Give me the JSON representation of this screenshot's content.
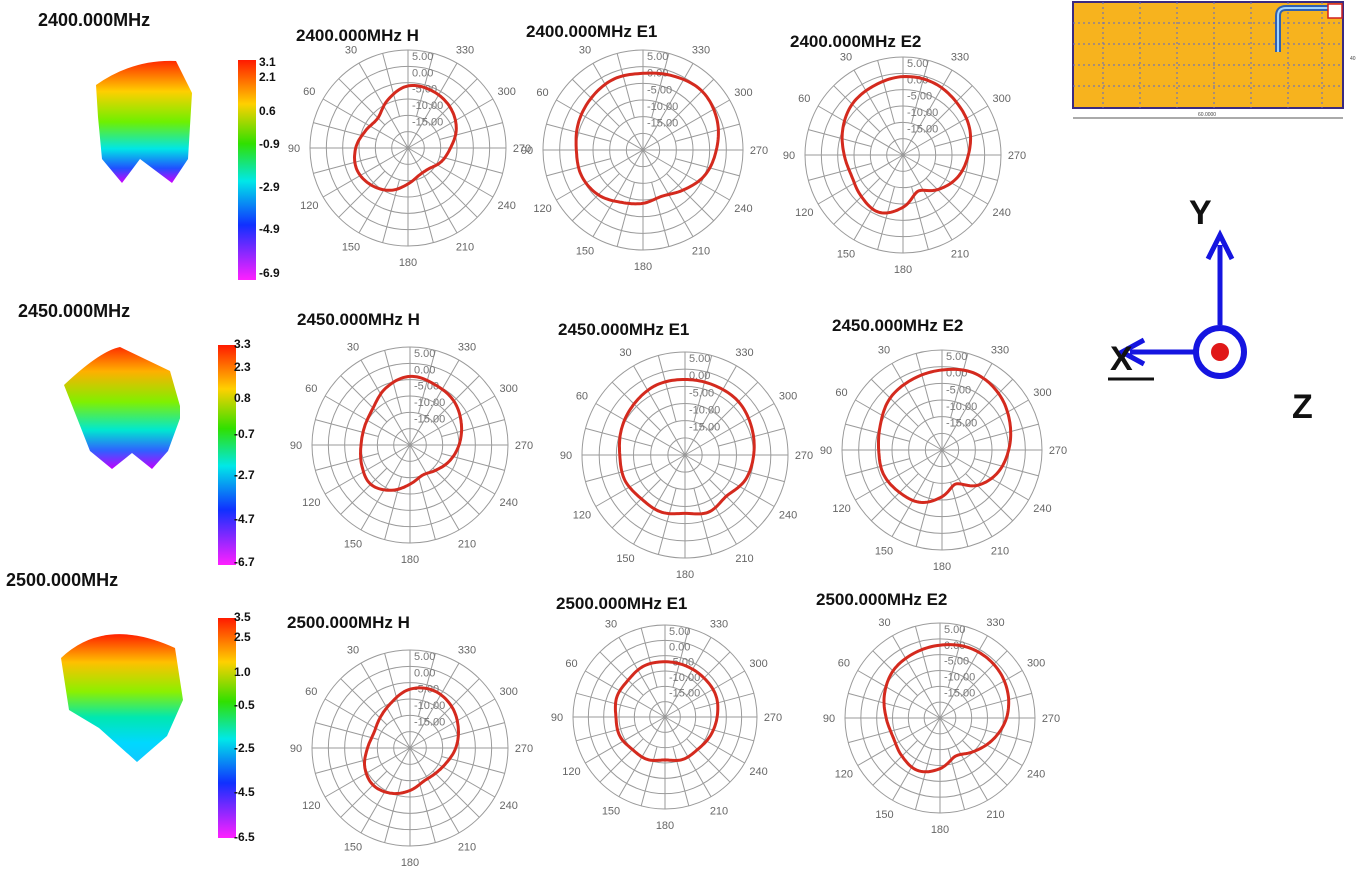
{
  "rows": [
    {
      "freq_label": "2400.000MHz",
      "colorbar": {
        "ticks": [
          "3.1",
          "2.1",
          "0.6",
          "-0.9",
          "-2.9",
          "-4.9",
          "-6.9"
        ]
      },
      "plots": [
        {
          "title": "2400.000MHz  H",
          "r_min": [
            6,
            9,
            12,
            11,
            9,
            8,
            9,
            11,
            14,
            16,
            16,
            14,
            12,
            9,
            7,
            6
          ]
        },
        {
          "title": "2400.000MHz  E1",
          "r_min": [
            2,
            2,
            3,
            4,
            5,
            5,
            6,
            8,
            9,
            10,
            8,
            5,
            3,
            1,
            0,
            1
          ]
        },
        {
          "title": "2400.000MHz  E2",
          "r_min": [
            1,
            2,
            3,
            5,
            7,
            8,
            7,
            6,
            9,
            13,
            10,
            7,
            5,
            3,
            2,
            1
          ]
        }
      ]
    },
    {
      "freq_label": "2450.000MHz",
      "colorbar": {
        "ticks": [
          "3.3",
          "2.3",
          "0.8",
          "-0.7",
          "-2.7",
          "-4.7",
          "-6.7"
        ]
      },
      "plots": [
        {
          "title": "2450.000MHz  H",
          "r_min": [
            4,
            6,
            9,
            10,
            10,
            9,
            8,
            10,
            13,
            15,
            14,
            12,
            10,
            8,
            6,
            5
          ]
        },
        {
          "title": "2450.000MHz  E1",
          "r_min": [
            3,
            3,
            4,
            5,
            6,
            6,
            7,
            7,
            8,
            7,
            8,
            6,
            5,
            4,
            3,
            3
          ]
        },
        {
          "title": "2450.000MHz  E2",
          "r_min": [
            1,
            2,
            3,
            5,
            6,
            6,
            7,
            8,
            11,
            14,
            10,
            7,
            5,
            3,
            1,
            0
          ]
        }
      ]
    },
    {
      "freq_label": "2500.000MHz",
      "colorbar": {
        "ticks": [
          "3.5",
          "2.5",
          "1.0",
          "-0.5",
          "-2.5",
          "-4.5",
          "-6.5"
        ]
      },
      "plots": [
        {
          "title": "2500.000MHz  H",
          "r_min": [
            7,
            10,
            12,
            13,
            12,
            10,
            9,
            10,
            12,
            14,
            14,
            13,
            11,
            9,
            7,
            6
          ]
        },
        {
          "title": "2500.000MHz  E1",
          "r_min": [
            7,
            7,
            8,
            8,
            9,
            9,
            10,
            10,
            11,
            10,
            10,
            9,
            8,
            7,
            7,
            7
          ]
        },
        {
          "title": "2500.000MHz  E2",
          "r_min": [
            2,
            3,
            4,
            6,
            8,
            9,
            8,
            7,
            9,
            12,
            10,
            7,
            4,
            2,
            1,
            1
          ]
        }
      ]
    }
  ],
  "chart_data": [
    {
      "type": "line",
      "title": "2400.000MHz  H",
      "theta_deg": [
        0,
        22.5,
        45,
        67.5,
        90,
        112.5,
        135,
        157.5,
        180,
        202.5,
        225,
        247.5,
        270,
        292.5,
        315,
        337.5
      ],
      "r_min": [
        6,
        9,
        12,
        11,
        9,
        8,
        9,
        11,
        14,
        16,
        16,
        14,
        12,
        9,
        7,
        6
      ]
    },
    {
      "type": "line",
      "title": "2400.000MHz  E1",
      "theta_deg": [
        0,
        22.5,
        45,
        67.5,
        90,
        112.5,
        135,
        157.5,
        180,
        202.5,
        225,
        247.5,
        270,
        292.5,
        315,
        337.5
      ],
      "r_min": [
        2,
        2,
        3,
        4,
        5,
        5,
        6,
        8,
        9,
        10,
        8,
        5,
        3,
        1,
        0,
        1
      ]
    },
    {
      "type": "line",
      "title": "2400.000MHz  E2",
      "theta_deg": [
        0,
        22.5,
        45,
        67.5,
        90,
        112.5,
        135,
        157.5,
        180,
        202.5,
        225,
        247.5,
        270,
        292.5,
        315,
        337.5
      ],
      "r_min": [
        1,
        2,
        3,
        5,
        7,
        8,
        7,
        6,
        9,
        13,
        10,
        7,
        5,
        3,
        2,
        1
      ]
    },
    {
      "type": "line",
      "title": "2450.000MHz  H",
      "theta_deg": [
        0,
        22.5,
        45,
        67.5,
        90,
        112.5,
        135,
        157.5,
        180,
        202.5,
        225,
        247.5,
        270,
        292.5,
        315,
        337.5
      ],
      "r_min": [
        4,
        6,
        9,
        10,
        10,
        9,
        8,
        10,
        13,
        15,
        14,
        12,
        10,
        8,
        6,
        5
      ]
    },
    {
      "type": "line",
      "title": "2450.000MHz  E1",
      "theta_deg": [
        0,
        22.5,
        45,
        67.5,
        90,
        112.5,
        135,
        157.5,
        180,
        202.5,
        225,
        247.5,
        270,
        292.5,
        315,
        337.5
      ],
      "r_min": [
        3,
        3,
        4,
        5,
        6,
        6,
        7,
        7,
        8,
        7,
        8,
        6,
        5,
        4,
        3,
        3
      ]
    },
    {
      "type": "line",
      "title": "2450.000MHz  E2",
      "theta_deg": [
        0,
        22.5,
        45,
        67.5,
        90,
        112.5,
        135,
        157.5,
        180,
        202.5,
        225,
        247.5,
        270,
        292.5,
        315,
        337.5
      ],
      "r_min": [
        1,
        2,
        3,
        5,
        6,
        6,
        7,
        8,
        11,
        14,
        10,
        7,
        5,
        3,
        1,
        0
      ]
    },
    {
      "type": "line",
      "title": "2500.000MHz  H",
      "theta_deg": [
        0,
        22.5,
        45,
        67.5,
        90,
        112.5,
        135,
        157.5,
        180,
        202.5,
        225,
        247.5,
        270,
        292.5,
        315,
        337.5
      ],
      "r_min": [
        7,
        10,
        12,
        13,
        12,
        10,
        9,
        10,
        12,
        14,
        14,
        13,
        11,
        9,
        7,
        6
      ]
    },
    {
      "type": "line",
      "title": "2500.000MHz  E1",
      "theta_deg": [
        0,
        22.5,
        45,
        67.5,
        90,
        112.5,
        135,
        157.5,
        180,
        202.5,
        225,
        247.5,
        270,
        292.5,
        315,
        337.5
      ],
      "r_min": [
        7,
        7,
        8,
        8,
        9,
        9,
        10,
        10,
        11,
        10,
        10,
        9,
        8,
        7,
        7,
        7
      ]
    },
    {
      "type": "line",
      "title": "2500.000MHz  E2",
      "theta_deg": [
        0,
        22.5,
        45,
        67.5,
        90,
        112.5,
        135,
        157.5,
        180,
        202.5,
        225,
        247.5,
        270,
        292.5,
        315,
        337.5
      ],
      "r_min": [
        2,
        3,
        4,
        6,
        8,
        9,
        8,
        7,
        9,
        12,
        10,
        7,
        4,
        2,
        1,
        1
      ]
    }
  ],
  "polar": {
    "rlim": [
      -25,
      5
    ],
    "ring_labels": [
      "5.00",
      "0.00",
      "-5.00",
      "-10.00",
      "-15.00"
    ],
    "angle_labels": [
      "330",
      "300",
      "270",
      "240",
      "210",
      "180",
      "150",
      "120",
      "90",
      "60",
      "30"
    ],
    "curve_color": "#d42a1e",
    "grid_color": "#9a9a9a"
  },
  "board": {
    "dimension_label": "60.0000",
    "side_label": "40",
    "fill_color": "#f7b31e"
  },
  "axes": {
    "x": "X",
    "y": "Y",
    "z": "Z",
    "color": "#1515e0"
  }
}
